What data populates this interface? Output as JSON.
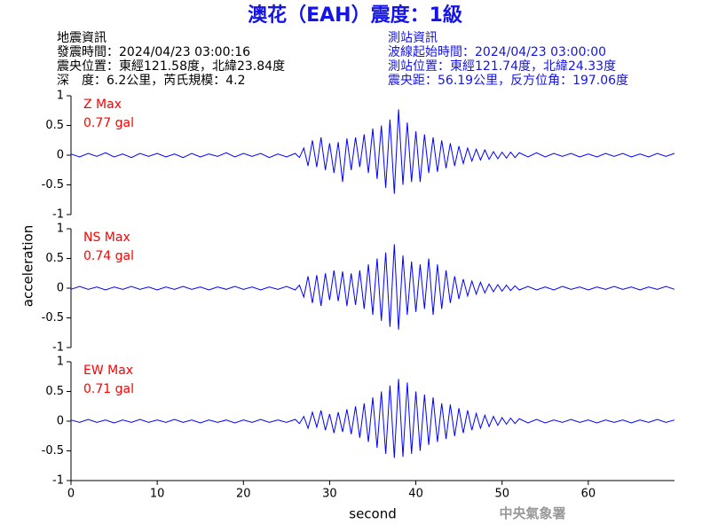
{
  "title": "澳花（EAH）震度：1級",
  "info_left": [
    "地震資訊",
    "發震時間：2024/04/23 03:00:16",
    "震央位置：東經121.58度，北緯23.84度",
    "深　度：6.2公里，芮氏規模：4.2"
  ],
  "info_right": [
    "測站資訊",
    "波線起始時間：2024/04/23 03:00:00",
    "測站位置：東經121.74度，北緯24.33度",
    "震央距：56.19公里，反方位角：197.06度"
  ],
  "footer": "中央氣象署",
  "chart_data": {
    "type": "line",
    "layout": "stacked",
    "xlabel": "second",
    "ylabel": "acceleration",
    "xlim": [
      0,
      70
    ],
    "xticks": [
      0,
      10,
      20,
      30,
      40,
      50,
      60
    ],
    "ylim": [
      -1,
      1
    ],
    "yticks": [
      -1,
      -0.5,
      0,
      0.5,
      1
    ],
    "x": [
      0,
      1,
      2,
      3,
      4,
      5,
      6,
      7,
      8,
      9,
      10,
      11,
      12,
      13,
      14,
      15,
      16,
      17,
      18,
      19,
      20,
      21,
      22,
      23,
      24,
      25,
      26,
      26.5,
      27,
      27.5,
      28,
      28.5,
      29,
      29.5,
      30,
      30.5,
      31,
      31.5,
      32,
      32.5,
      33,
      33.5,
      34,
      34.5,
      35,
      35.5,
      36,
      36.5,
      37,
      37.5,
      38,
      38.5,
      39,
      39.5,
      40,
      40.5,
      41,
      41.5,
      42,
      42.5,
      43,
      43.5,
      44,
      44.5,
      45,
      45.5,
      46,
      46.5,
      47,
      47.5,
      48,
      48.5,
      49,
      49.5,
      50,
      50.5,
      51,
      51.5,
      52,
      53,
      54,
      55,
      56,
      57,
      58,
      59,
      60,
      61,
      62,
      63,
      64,
      65,
      66,
      67,
      68,
      69,
      70
    ],
    "series": [
      {
        "name": "Z Max",
        "max_label": "0.77 gal",
        "color": "#0000ff",
        "label_color": "#ff0000",
        "values": [
          0.02,
          -0.03,
          0.03,
          -0.02,
          0.04,
          -0.03,
          0.02,
          -0.04,
          0.03,
          -0.02,
          0.03,
          -0.03,
          0.02,
          -0.04,
          0.03,
          -0.03,
          0.02,
          -0.02,
          0.04,
          -0.03,
          0.03,
          -0.02,
          0.03,
          -0.04,
          0.02,
          -0.03,
          0.03,
          -0.04,
          0.12,
          -0.18,
          0.25,
          -0.2,
          0.3,
          -0.25,
          0.2,
          -0.3,
          0.22,
          -0.45,
          0.28,
          -0.25,
          0.3,
          -0.2,
          0.35,
          -0.3,
          0.45,
          -0.4,
          0.5,
          -0.55,
          0.6,
          -0.65,
          0.77,
          -0.5,
          0.55,
          -0.45,
          0.4,
          -0.45,
          0.35,
          -0.3,
          0.3,
          -0.28,
          0.25,
          -0.22,
          0.2,
          -0.18,
          0.15,
          -0.14,
          0.12,
          -0.1,
          0.1,
          -0.08,
          0.09,
          -0.07,
          0.06,
          -0.06,
          0.05,
          -0.05,
          0.05,
          -0.04,
          0.04,
          -0.03,
          0.04,
          -0.03,
          0.03,
          -0.02,
          0.03,
          -0.03,
          0.02,
          -0.03,
          0.03,
          -0.02,
          0.03,
          -0.03,
          0.02,
          -0.03,
          0.03,
          -0.02,
          0.03
        ]
      },
      {
        "name": "NS Max",
        "max_label": "0.74 gal",
        "color": "#0000ff",
        "label_color": "#ff0000",
        "values": [
          -0.02,
          0.03,
          -0.02,
          0.02,
          -0.03,
          0.02,
          -0.02,
          0.03,
          -0.02,
          0.02,
          -0.03,
          0.02,
          -0.02,
          0.03,
          -0.02,
          0.02,
          -0.03,
          0.02,
          -0.02,
          0.03,
          -0.02,
          0.02,
          -0.03,
          0.02,
          -0.02,
          0.03,
          -0.03,
          0.05,
          -0.15,
          0.2,
          -0.25,
          0.22,
          -0.3,
          0.25,
          -0.2,
          0.3,
          -0.22,
          0.28,
          -0.3,
          0.25,
          -0.28,
          0.3,
          -0.35,
          0.4,
          -0.45,
          0.5,
          -0.55,
          0.6,
          -0.65,
          0.74,
          -0.7,
          0.55,
          -0.45,
          0.45,
          -0.4,
          0.4,
          -0.35,
          0.5,
          -0.45,
          0.4,
          -0.35,
          0.3,
          -0.25,
          0.2,
          -0.18,
          0.15,
          -0.13,
          0.12,
          -0.1,
          0.1,
          -0.08,
          0.07,
          -0.06,
          0.06,
          -0.05,
          0.05,
          -0.04,
          0.04,
          -0.03,
          0.03,
          -0.03,
          0.02,
          -0.03,
          0.03,
          -0.02,
          0.02,
          -0.03,
          0.02,
          -0.02,
          0.03,
          -0.02,
          0.02,
          -0.03,
          0.02,
          -0.02,
          0.03,
          -0.02
        ]
      },
      {
        "name": "EW Max",
        "max_label": "0.71 gal",
        "color": "#0000ff",
        "label_color": "#ff0000",
        "values": [
          0.02,
          -0.02,
          0.03,
          -0.02,
          0.02,
          -0.03,
          0.02,
          -0.02,
          0.03,
          -0.02,
          0.02,
          -0.02,
          0.03,
          -0.02,
          0.02,
          -0.03,
          0.02,
          -0.02,
          0.02,
          -0.03,
          0.02,
          -0.02,
          0.03,
          -0.02,
          0.02,
          -0.02,
          0.03,
          -0.04,
          0.08,
          -0.12,
          0.15,
          -0.1,
          0.18,
          -0.15,
          0.12,
          -0.2,
          0.15,
          -0.18,
          0.2,
          -0.22,
          0.25,
          -0.28,
          0.3,
          -0.35,
          0.4,
          -0.45,
          0.5,
          -0.55,
          0.6,
          -0.62,
          0.71,
          -0.6,
          0.65,
          -0.55,
          0.5,
          -0.5,
          0.45,
          -0.4,
          0.4,
          -0.35,
          0.3,
          -0.3,
          0.28,
          -0.25,
          0.22,
          -0.2,
          0.18,
          -0.15,
          0.13,
          -0.12,
          0.1,
          -0.09,
          0.08,
          -0.07,
          0.06,
          -0.05,
          0.05,
          -0.04,
          0.04,
          -0.03,
          0.03,
          -0.03,
          0.02,
          -0.02,
          0.03,
          -0.02,
          0.02,
          -0.03,
          0.02,
          -0.02,
          0.02,
          -0.03,
          0.02,
          -0.02,
          0.03,
          -0.02,
          0.02
        ]
      }
    ]
  }
}
